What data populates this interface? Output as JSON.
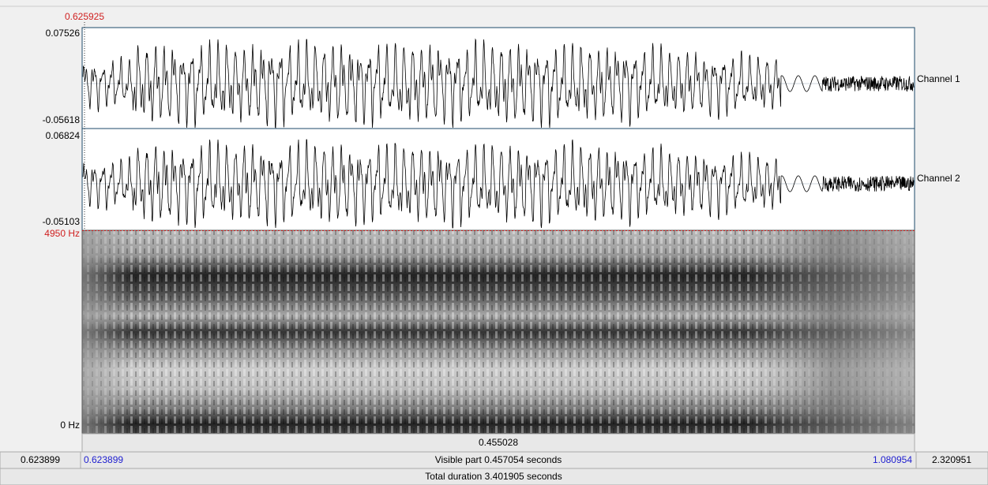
{
  "cursor": {
    "time": "0.625925"
  },
  "channels": [
    {
      "max": "0.07526",
      "min": "-0.05618",
      "label": "Channel 1"
    },
    {
      "max": "0.06824",
      "min": "-0.05103",
      "label": "Channel 2"
    }
  ],
  "spectrogram": {
    "max_label": "4950 Hz",
    "min_label": "0 Hz"
  },
  "selection": {
    "duration": "0.455028"
  },
  "bottom_bar": {
    "left_hidden": "0.623899",
    "visible_start": "0.623899",
    "visible_label": "Visible part 0.457054 seconds",
    "visible_end": "1.080954",
    "right_hidden": "2.320951",
    "total_label": "Total duration 3.401905 seconds"
  }
}
